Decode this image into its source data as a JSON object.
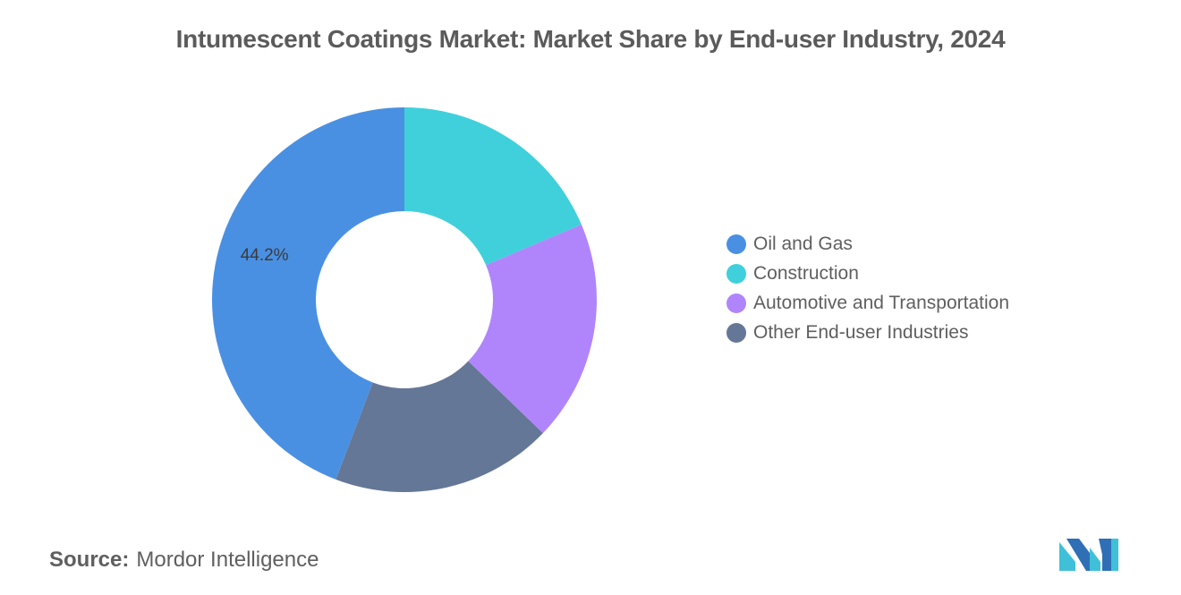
{
  "title": "Intumescent Coatings Market: Market Share by End-user Industry, 2024",
  "source": {
    "label": "Source:",
    "text": "Mordor Intelligence"
  },
  "chart_data": {
    "type": "pie",
    "donut": true,
    "title": "Intumescent Coatings Market: Market Share by End-user Industry, 2024",
    "legend_position": "right",
    "slices": [
      {
        "name": "Oil and Gas",
        "value": 44.2,
        "label": "44.2%",
        "color": "#4a90e2"
      },
      {
        "name": "Construction",
        "value": 18.6,
        "label": "",
        "color": "#3fd0db"
      },
      {
        "name": "Automotive and Transportation",
        "value": 18.6,
        "label": "",
        "color": "#b085fb"
      },
      {
        "name": "Other End-user Industries",
        "value": 18.6,
        "label": "",
        "color": "#647796"
      }
    ]
  },
  "logo": {
    "icon": "mordor-intelligence-logo",
    "colors": [
      "#3fc0d8",
      "#2f6fb5"
    ]
  }
}
